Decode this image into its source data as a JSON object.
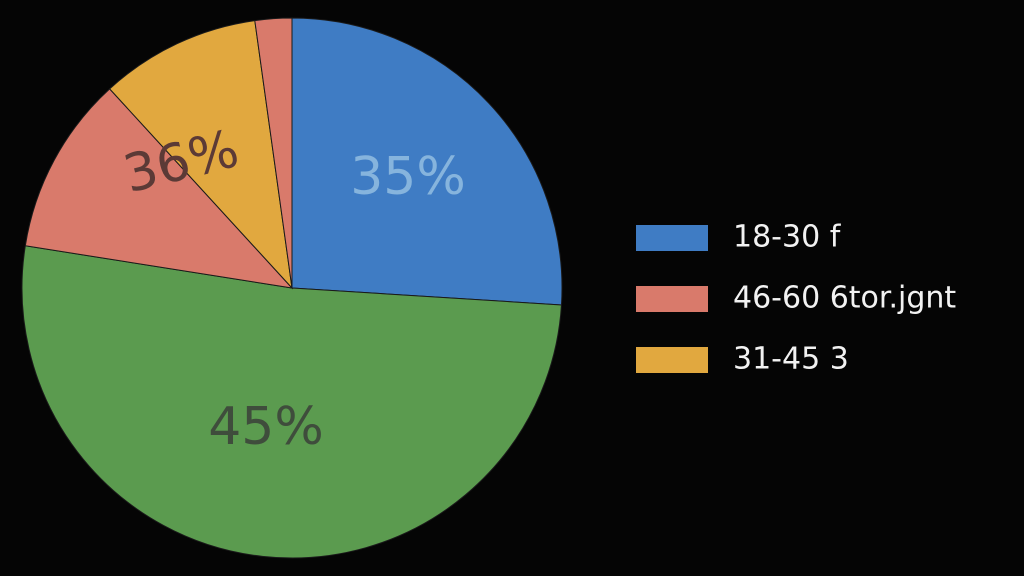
{
  "chart_data": {
    "type": "pie",
    "categories": [
      "18-30 f",
      null,
      "46-60 6tor.jgnt",
      "31-45 3",
      null
    ],
    "values": [
      26,
      51.5,
      10.7,
      9.6,
      2.2
    ],
    "colors": [
      "#3f7cc4",
      "#5b9b4f",
      "#d97a6b",
      "#e1a83f",
      "#d97a6b"
    ],
    "start_angle": 0,
    "direction": "clockwise",
    "annotations": [
      "35%",
      "36%",
      "45%"
    ],
    "legend": "right"
  }
}
